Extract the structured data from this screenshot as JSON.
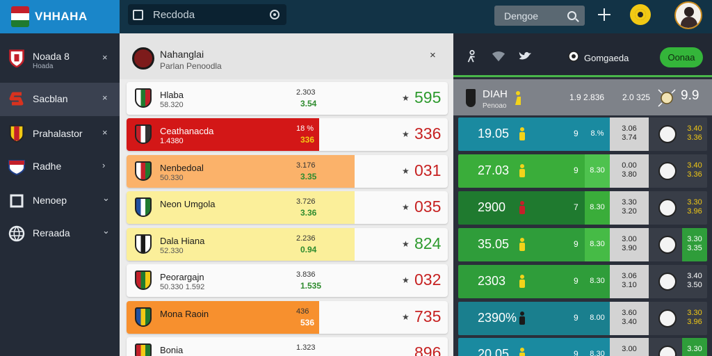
{
  "app": {
    "title": "VHHAHA",
    "search": {
      "value": "Recdoda"
    },
    "design_field": {
      "value": "Dengoe"
    }
  },
  "colors": {
    "brand": "#1a86c9",
    "topbar": "#123346",
    "accent_green": "#34b53a",
    "accent_red": "#d31717"
  },
  "sidebar": {
    "items": [
      {
        "label": "Noada 8",
        "sub": "Hoada",
        "icon": "shield-icon",
        "caret": "×"
      },
      {
        "label": "Sacblan",
        "sub": "",
        "icon": "s-logo-icon",
        "caret": "×"
      },
      {
        "label": "Prahalastor",
        "sub": "",
        "icon": "flag-shield-icon",
        "caret": "×"
      },
      {
        "label": "Radhe",
        "sub": "",
        "icon": "crest-icon",
        "caret": "›"
      },
      {
        "label": "Nenoep",
        "sub": "",
        "icon": "square-icon",
        "caret": "⌄"
      },
      {
        "label": "Reraada",
        "sub": "",
        "icon": "globe-icon",
        "caret": "⌄"
      }
    ]
  },
  "main": {
    "title": "Nahanglai",
    "subtitle": "Parlan Penoodla",
    "close": "×",
    "rows": [
      {
        "name": "Hlaba",
        "sub": "58.320",
        "val": "2.303",
        "delta": "3.54",
        "star": "★",
        "score": "595",
        "score_color": "#2e9a2e",
        "fill": "",
        "fill_pct": 0,
        "shield": [
          "#ffffff",
          "#1f7a2f",
          "#c3202a"
        ]
      },
      {
        "name": "Ceathanacda",
        "sub": "1.4380",
        "val": "18 %",
        "delta": "336",
        "star": "★",
        "score": "336",
        "score_color": "#c62121",
        "fill": "#d31717",
        "fill_pct": 60,
        "shield": [
          "#c3202a",
          "#ffffff",
          "#333333"
        ]
      },
      {
        "name": "Nenbedoal",
        "sub": "50.330",
        "val": "3.176",
        "delta": "3.35",
        "star": "★",
        "score": "031",
        "score_color": "#c62121",
        "fill": "#fbb26a",
        "fill_pct": 71,
        "shield": [
          "#ffffff",
          "#c3202a",
          "#1f7a2f"
        ]
      },
      {
        "name": "Neon Umgola",
        "sub": "",
        "val": "3.726",
        "delta": "3.36",
        "star": "★",
        "score": "035",
        "score_color": "#c62121",
        "fill": "#fbef9a",
        "fill_pct": 71,
        "shield": [
          "#1f4fa0",
          "#ffffff",
          "#1f7a2f"
        ]
      },
      {
        "name": "Dala Hiana",
        "sub": "52.330",
        "val": "2.236",
        "delta": "0.94",
        "star": "★",
        "score": "824",
        "score_color": "#2e9a2e",
        "fill": "#fbef9a",
        "fill_pct": 71,
        "shield": [
          "#ffffff",
          "#1a1a1a",
          "#ffffff"
        ]
      },
      {
        "name": "Peorargajn",
        "sub": "50.330  1.592",
        "val": "3.836",
        "delta": "1.535",
        "star": "★",
        "score": "032",
        "score_color": "#c62121",
        "fill": "",
        "fill_pct": 0,
        "shield": [
          "#c3202a",
          "#1f7a2f",
          "#f2c914"
        ]
      },
      {
        "name": "Mona Raoin",
        "sub": "",
        "val": "436",
        "delta": "536",
        "star": "★",
        "score": "735",
        "score_color": "#c62121",
        "fill": "#f7902e",
        "fill_pct": 60,
        "shield": [
          "#1f4fa0",
          "#f2c914",
          "#1f7a2f"
        ]
      },
      {
        "name": "Bonia",
        "sub": "",
        "val": "1.323",
        "delta": "",
        "star": "",
        "score": "896",
        "score_color": "#c62121",
        "fill": "",
        "fill_pct": 0,
        "shield": [
          "#c3202a",
          "#f2c914",
          "#1f7a2f"
        ]
      }
    ]
  },
  "right": {
    "games_label": "Gomgaeda",
    "ok_label": "Oonaa",
    "band": {
      "title": "DIAH",
      "sub": "Penoao",
      "a": "1.9 2.836",
      "b": "2.0 325",
      "c": "9.9"
    },
    "rows": [
      {
        "value": "19.05",
        "bg": "#1a8aa0",
        "n": "9",
        "pct": "8.%",
        "pct_bg": "#1a8aa0",
        "gray": [
          "3.06",
          "3.74"
        ],
        "odd": [
          "3.40",
          "3.36"
        ],
        "odd_bg": "#383d47",
        "odd_color": "#f2c914",
        "figure": "#f2d31a"
      },
      {
        "value": "27.03",
        "bg": "#3aad3a",
        "n": "9",
        "pct": "8.30",
        "pct_bg": "#4ec24e",
        "gray": [
          "0.00",
          "3.80"
        ],
        "odd": [
          "3.40",
          "3.36"
        ],
        "odd_bg": "#383d47",
        "odd_color": "#f2c914",
        "figure": "#f2d31a"
      },
      {
        "value": "2900",
        "bg": "#1f7a2f",
        "n": "7",
        "pct": "8.30",
        "pct_bg": "#3aad3a",
        "gray": [
          "3.30",
          "3.20"
        ],
        "odd": [
          "3.30",
          "3.96"
        ],
        "odd_bg": "#383d47",
        "odd_color": "#f2c914",
        "figure": "#c3202a"
      },
      {
        "value": "35.05",
        "bg": "#2f9d3a",
        "n": "9",
        "pct": "8.30",
        "pct_bg": "#46bb46",
        "gray": [
          "3.00",
          "3.90"
        ],
        "odd": [
          "3.30",
          "3.35"
        ],
        "odd_bg": "#2f9d3a",
        "odd_color": "#ffffff",
        "figure": "#f2d31a"
      },
      {
        "value": "2303",
        "bg": "#2f9d3a",
        "n": "9",
        "pct": "8.30",
        "pct_bg": "#2f9d3a",
        "gray": [
          "3.06",
          "3.10"
        ],
        "odd": [
          "3.40",
          "3.50"
        ],
        "odd_bg": "#383d47",
        "odd_color": "#ffffff",
        "figure": "#f2d31a"
      },
      {
        "value": "2390%",
        "bg": "#1a7f8e",
        "n": "9",
        "pct": "8.00",
        "pct_bg": "#1a7f8e",
        "gray": [
          "3.60",
          "3.40"
        ],
        "odd": [
          "3.30",
          "3.96"
        ],
        "odd_bg": "#383d47",
        "odd_color": "#f2c914",
        "figure": "#1a1a1a"
      },
      {
        "value": "20.05",
        "bg": "#1a8aa0",
        "n": "9",
        "pct": "8.30",
        "pct_bg": "#1a8aa0",
        "gray": [
          "3.00",
          ""
        ],
        "odd": [
          "3.30",
          ""
        ],
        "odd_bg": "#2f9d3a",
        "odd_color": "#ffffff",
        "figure": "#f2d31a"
      }
    ]
  }
}
